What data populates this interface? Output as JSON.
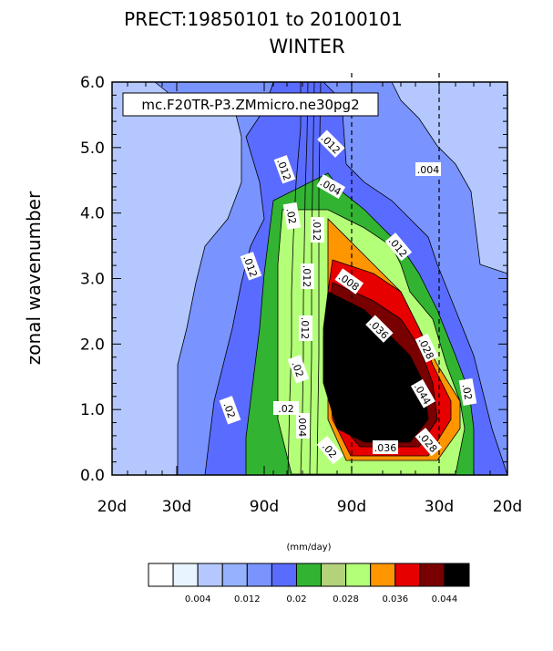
{
  "title_line1": "PRECT:19850101 to 20100101",
  "title_line2": "WINTER",
  "legend_box_text": "mc.F20TR-P3.ZMmicro.ne30pg2",
  "units": "(mm/day)",
  "chart_data": {
    "type": "heatmap",
    "ylabel": "zonal wavenumber",
    "ylim": [
      0,
      6
    ],
    "y_ticks": [
      "0.0",
      "1.0",
      "2.0",
      "3.0",
      "4.0",
      "5.0",
      "6.0"
    ],
    "x_ticks": [
      "20d",
      "30d",
      "90d",
      "90d",
      "30d",
      "20d"
    ],
    "colorbar_levels": [
      0.002,
      0.004,
      0.008,
      0.012,
      0.016,
      0.02,
      0.024,
      0.028,
      0.032,
      0.036,
      0.04,
      0.044,
      0.048
    ],
    "colorbar_colors": [
      "#ffffff",
      "#e8f4ff",
      "#b4c8ff",
      "#96b2ff",
      "#7a94ff",
      "#5a6cff",
      "#32b432",
      "#b4d27a",
      "#b4ff78",
      "#ff9600",
      "#e60000",
      "#780000",
      "#000000"
    ],
    "colorbar_labels": [
      "0.004",
      "0.012",
      "0.02",
      "0.028",
      "0.036",
      "0.044"
    ],
    "contour_labels": [
      ".012",
      ".02",
      ".012",
      ".012",
      ".004",
      ".012",
      ".012",
      ".02",
      ".02",
      ".004",
      ".012",
      ".02",
      ".004",
      ".02",
      ".008",
      ".036",
      ".028",
      ".044",
      ".036",
      ".028",
      ".02",
      ".012"
    ],
    "region_levels": [
      0.004,
      0.012,
      0.016,
      0.02,
      0.028,
      0.032,
      0.036,
      0.04,
      0.044,
      0.048
    ]
  }
}
